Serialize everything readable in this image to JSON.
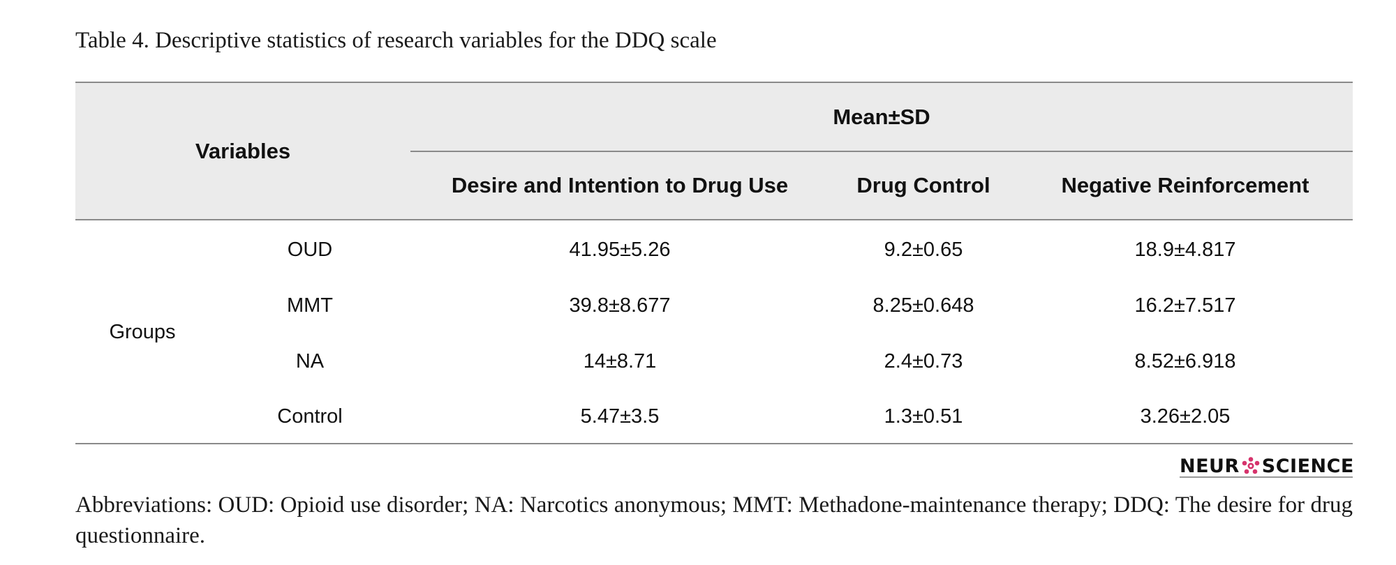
{
  "caption": "Table 4. Descriptive statistics of research variables for the DDQ scale",
  "table": {
    "header": {
      "variables": "Variables",
      "group_title": "Mean±SD",
      "columns": [
        "Desire and Intention to Drug Use",
        "Drug Control",
        "Negative Reinforcement"
      ]
    },
    "group_label": "Groups",
    "rows": [
      {
        "name": "OUD",
        "values": [
          "41.95±5.26",
          "9.2±0.65",
          "18.9±4.817"
        ]
      },
      {
        "name": "MMT",
        "values": [
          "39.8±8.677",
          "8.25±0.648",
          "16.2±7.517"
        ]
      },
      {
        "name": "NA",
        "values": [
          "14±8.71",
          "2.4±0.73",
          "8.52±6.918"
        ]
      },
      {
        "name": "Control",
        "values": [
          "5.47±3.5",
          "1.3±0.51",
          "3.26±2.05"
        ]
      }
    ]
  },
  "logo": {
    "left": "NEUR",
    "right": "SCIENCE",
    "accent_color": "#d6336c"
  },
  "footnote": "Abbreviations: OUD: Opioid use disorder; NA: Narcotics anonymous; MMT: Methadone-maintenance therapy; DDQ: The desire for drug questionnaire."
}
